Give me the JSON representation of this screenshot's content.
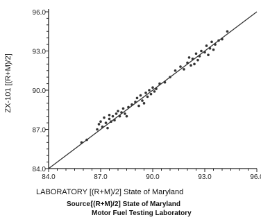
{
  "chart_data": {
    "type": "scatter",
    "title": "",
    "xlabel": "LABORATORY [(R+M)/2] State of Maryland",
    "ylabel": "ZX-101 [(R+M)/2]",
    "xlim": [
      84.0,
      96.0
    ],
    "ylim": [
      84.0,
      96.0
    ],
    "x_ticks": [
      "84.0",
      "87.0",
      "90.0",
      "93.0",
      "96.0"
    ],
    "y_ticks": [
      "84.0",
      "87.0",
      "90.0",
      "93.0",
      "96.0"
    ],
    "grid": false,
    "reference_line": {
      "x": [
        84.0,
        96.0
      ],
      "y": [
        84.0,
        96.0
      ]
    },
    "series": [
      {
        "x": [
          85.9,
          86.2,
          86.8,
          86.9,
          87.0,
          87.1,
          87.2,
          87.3,
          87.4,
          87.5,
          87.5,
          87.6,
          87.7,
          87.8,
          87.9,
          88.0,
          88.1,
          88.2,
          88.3,
          88.4,
          88.5,
          88.6,
          88.8,
          89.0,
          89.1,
          89.2,
          89.3,
          89.4,
          89.5,
          89.6,
          89.7,
          89.8,
          89.9,
          90.0,
          90.1,
          90.2,
          90.4,
          90.7,
          91.0,
          91.3,
          91.6,
          91.8,
          92.0,
          92.1,
          92.2,
          92.3,
          92.4,
          92.5,
          92.6,
          92.7,
          92.8,
          93.0,
          93.1,
          93.2,
          93.3,
          93.4,
          93.5,
          93.6,
          93.8,
          94.0,
          94.3
        ],
        "y": [
          86.0,
          86.2,
          87.0,
          87.4,
          87.6,
          87.2,
          87.9,
          87.5,
          87.1,
          87.8,
          88.1,
          87.6,
          88.0,
          87.7,
          88.2,
          88.4,
          88.0,
          88.3,
          88.6,
          88.2,
          88.0,
          88.7,
          88.9,
          89.1,
          89.4,
          88.8,
          89.6,
          89.2,
          89.0,
          89.8,
          89.5,
          90.0,
          89.7,
          90.2,
          89.9,
          90.1,
          90.5,
          90.6,
          91.0,
          91.5,
          91.8,
          91.6,
          92.1,
          92.5,
          91.9,
          92.4,
          92.0,
          92.8,
          92.3,
          92.6,
          93.0,
          92.9,
          93.4,
          92.7,
          93.2,
          93.7,
          93.1,
          93.5,
          93.8,
          93.9,
          94.5
        ]
      }
    ]
  },
  "labels": {
    "source_label": "Source:",
    "source_line1": "[(R+M)/2] State of Maryland",
    "source_line2": "Motor Fuel Testing Laboratory"
  }
}
